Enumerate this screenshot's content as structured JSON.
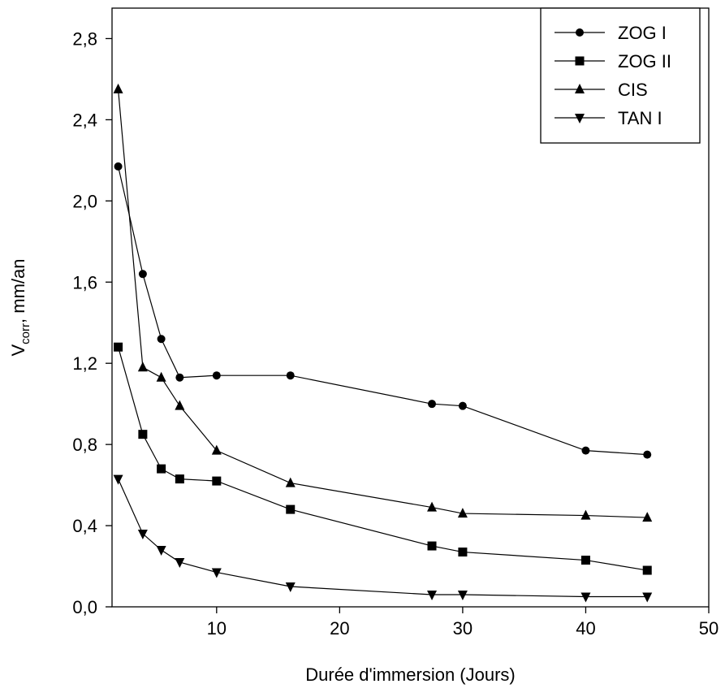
{
  "chart_data": {
    "type": "line",
    "title": "",
    "xlabel": "Durée d'immersion (Jours)",
    "ylabel": {
      "main": "V",
      "sub": "corr",
      "rest": ", mm/an"
    },
    "xlim": [
      1.5,
      50
    ],
    "ylim": [
      0,
      2.95
    ],
    "xticks": [
      10,
      20,
      30,
      40,
      50
    ],
    "xtick_labels": [
      "10",
      "20",
      "30",
      "40",
      "50"
    ],
    "yticks": [
      0,
      0.4,
      0.8,
      1.2,
      1.6,
      2.0,
      2.4,
      2.8
    ],
    "ytick_labels": [
      "0,0",
      "0,4",
      "0,8",
      "1,2",
      "1,6",
      "2,0",
      "2,4",
      "2,8"
    ],
    "grid": false,
    "legend_position": "top-right",
    "series": [
      {
        "name": "ZOG I",
        "marker": "circle",
        "x": [
          2,
          4,
          5.5,
          7,
          10,
          16,
          27.5,
          30,
          40,
          45
        ],
        "y": [
          2.17,
          1.64,
          1.32,
          1.13,
          1.14,
          1.14,
          1.0,
          0.99,
          0.77,
          0.75
        ]
      },
      {
        "name": "ZOG II",
        "marker": "square",
        "x": [
          2,
          4,
          5.5,
          7,
          10,
          16,
          27.5,
          30,
          40,
          45
        ],
        "y": [
          1.28,
          0.85,
          0.68,
          0.63,
          0.62,
          0.48,
          0.3,
          0.27,
          0.23,
          0.18
        ]
      },
      {
        "name": "CIS",
        "marker": "triangle-up",
        "x": [
          2,
          4,
          5.5,
          7,
          10,
          16,
          27.5,
          30,
          40,
          45
        ],
        "y": [
          2.55,
          1.18,
          1.13,
          0.99,
          0.77,
          0.61,
          0.49,
          0.46,
          0.45,
          0.44
        ]
      },
      {
        "name": "TAN I",
        "marker": "triangle-down",
        "x": [
          2,
          4,
          5.5,
          7,
          10,
          16,
          27.5,
          30,
          40,
          45
        ],
        "y": [
          0.63,
          0.36,
          0.28,
          0.22,
          0.17,
          0.1,
          0.06,
          0.06,
          0.05,
          0.05
        ]
      }
    ]
  }
}
